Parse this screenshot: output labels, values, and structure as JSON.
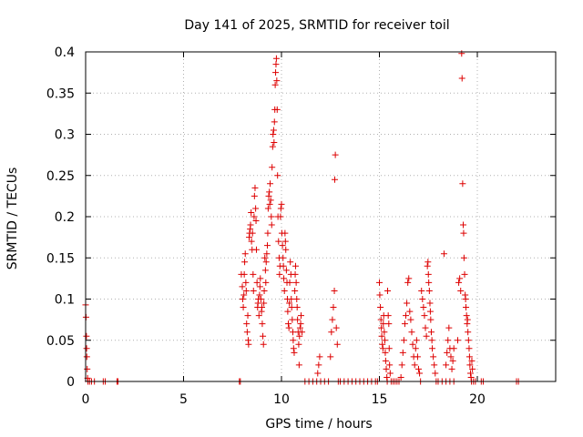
{
  "chart_data": {
    "type": "scatter",
    "title": "Day 141 of 2025, SRMTID for receiver toil",
    "xlabel": "GPS time / hours",
    "ylabel": "SRMTID / TECUs",
    "xlim": [
      0,
      24
    ],
    "ylim": [
      0,
      0.4
    ],
    "xticks": [
      0,
      5,
      10,
      15,
      20
    ],
    "xtick_labels": [
      "0",
      "5",
      "10",
      "15",
      "20"
    ],
    "yticks": [
      0,
      0.05,
      0.1,
      0.15,
      0.2,
      0.25,
      0.3,
      0.35,
      0.4
    ],
    "ytick_labels": [
      "0",
      "0.05",
      "0.1",
      "0.15",
      "0.2",
      "0.25",
      "0.3",
      "0.35",
      "0.4"
    ],
    "grid": true,
    "marker": "+",
    "marker_color": "#dd0000",
    "series": [
      {
        "name": "SRMTID",
        "points": [
          [
            0.0,
            0.093
          ],
          [
            0.02,
            0.078
          ],
          [
            0.04,
            0.055
          ],
          [
            0.05,
            0.04
          ],
          [
            0.06,
            0.03
          ],
          [
            0.08,
            0.015
          ],
          [
            0.1,
            0.004
          ],
          [
            0.12,
            0.0
          ],
          [
            0.2,
            0.0
          ],
          [
            0.3,
            0.0
          ],
          [
            0.45,
            0.0
          ],
          [
            0.9,
            0.0
          ],
          [
            1.0,
            0.0
          ],
          [
            1.6,
            0.0
          ],
          [
            1.65,
            0.0
          ],
          [
            7.85,
            0.0
          ],
          [
            7.9,
            0.0
          ],
          [
            7.95,
            0.13
          ],
          [
            8.0,
            0.115
          ],
          [
            8.02,
            0.1
          ],
          [
            8.05,
            0.09
          ],
          [
            8.08,
            0.105
          ],
          [
            8.1,
            0.13
          ],
          [
            8.12,
            0.145
          ],
          [
            8.15,
            0.155
          ],
          [
            8.18,
            0.12
          ],
          [
            8.2,
            0.11
          ],
          [
            8.22,
            0.07
          ],
          [
            8.25,
            0.06
          ],
          [
            8.28,
            0.08
          ],
          [
            8.3,
            0.05
          ],
          [
            8.32,
            0.045
          ],
          [
            8.35,
            0.175
          ],
          [
            8.37,
            0.18
          ],
          [
            8.4,
            0.185
          ],
          [
            8.42,
            0.19
          ],
          [
            8.45,
            0.205
          ],
          [
            8.47,
            0.17
          ],
          [
            8.5,
            0.16
          ],
          [
            8.52,
            0.18
          ],
          [
            8.55,
            0.13
          ],
          [
            8.57,
            0.11
          ],
          [
            8.6,
            0.2
          ],
          [
            8.62,
            0.225
          ],
          [
            8.65,
            0.235
          ],
          [
            8.68,
            0.21
          ],
          [
            8.7,
            0.195
          ],
          [
            8.72,
            0.16
          ],
          [
            8.75,
            0.12
          ],
          [
            8.78,
            0.09
          ],
          [
            8.8,
            0.095
          ],
          [
            8.82,
            0.1
          ],
          [
            8.85,
            0.08
          ],
          [
            8.88,
            0.105
          ],
          [
            8.9,
            0.115
          ],
          [
            8.92,
            0.125
          ],
          [
            8.95,
            0.1
          ],
          [
            8.98,
            0.085
          ],
          [
            9.0,
            0.09
          ],
          [
            9.02,
            0.07
          ],
          [
            9.05,
            0.055
          ],
          [
            9.08,
            0.045
          ],
          [
            9.1,
            0.095
          ],
          [
            9.12,
            0.11
          ],
          [
            9.15,
            0.15
          ],
          [
            9.18,
            0.135
          ],
          [
            9.2,
            0.12
          ],
          [
            9.22,
            0.145
          ],
          [
            9.25,
            0.155
          ],
          [
            9.28,
            0.165
          ],
          [
            9.3,
            0.18
          ],
          [
            9.32,
            0.21
          ],
          [
            9.35,
            0.225
          ],
          [
            9.38,
            0.23
          ],
          [
            9.4,
            0.215
          ],
          [
            9.42,
            0.24
          ],
          [
            9.45,
            0.22
          ],
          [
            9.48,
            0.2
          ],
          [
            9.5,
            0.19
          ],
          [
            9.52,
            0.26
          ],
          [
            9.55,
            0.285
          ],
          [
            9.57,
            0.3
          ],
          [
            9.6,
            0.305
          ],
          [
            9.62,
            0.29
          ],
          [
            9.64,
            0.315
          ],
          [
            9.66,
            0.33
          ],
          [
            9.68,
            0.36
          ],
          [
            9.7,
            0.375
          ],
          [
            9.72,
            0.385
          ],
          [
            9.74,
            0.392
          ],
          [
            9.76,
            0.365
          ],
          [
            9.78,
            0.33
          ],
          [
            9.8,
            0.25
          ],
          [
            9.82,
            0.2
          ],
          [
            9.85,
            0.17
          ],
          [
            9.88,
            0.15
          ],
          [
            9.9,
            0.13
          ],
          [
            9.92,
            0.14
          ],
          [
            9.95,
            0.2
          ],
          [
            9.97,
            0.21
          ],
          [
            10.0,
            0.215
          ],
          [
            10.02,
            0.18
          ],
          [
            10.05,
            0.165
          ],
          [
            10.08,
            0.15
          ],
          [
            10.1,
            0.14
          ],
          [
            10.12,
            0.125
          ],
          [
            10.15,
            0.11
          ],
          [
            10.18,
            0.18
          ],
          [
            10.2,
            0.17
          ],
          [
            10.22,
            0.16
          ],
          [
            10.25,
            0.135
          ],
          [
            10.28,
            0.12
          ],
          [
            10.3,
            0.1
          ],
          [
            10.32,
            0.085
          ],
          [
            10.35,
            0.07
          ],
          [
            10.38,
            0.065
          ],
          [
            10.4,
            0.095
          ],
          [
            10.42,
            0.12
          ],
          [
            10.45,
            0.145
          ],
          [
            10.48,
            0.13
          ],
          [
            10.5,
            0.1
          ],
          [
            10.52,
            0.09
          ],
          [
            10.55,
            0.075
          ],
          [
            10.58,
            0.06
          ],
          [
            10.6,
            0.05
          ],
          [
            10.62,
            0.04
          ],
          [
            10.65,
            0.035
          ],
          [
            10.68,
            0.11
          ],
          [
            10.7,
            0.13
          ],
          [
            10.72,
            0.14
          ],
          [
            10.75,
            0.12
          ],
          [
            10.78,
            0.1
          ],
          [
            10.8,
            0.09
          ],
          [
            10.82,
            0.075
          ],
          [
            10.85,
            0.06
          ],
          [
            10.88,
            0.045
          ],
          [
            10.9,
            0.02
          ],
          [
            10.92,
            0.055
          ],
          [
            10.95,
            0.065
          ],
          [
            10.98,
            0.07
          ],
          [
            11.0,
            0.08
          ],
          [
            11.05,
            0.06
          ],
          [
            11.2,
            0.0
          ],
          [
            11.4,
            0.0
          ],
          [
            11.6,
            0.0
          ],
          [
            11.8,
            0.0
          ],
          [
            11.85,
            0.01
          ],
          [
            11.9,
            0.02
          ],
          [
            11.95,
            0.03
          ],
          [
            12.0,
            0.0
          ],
          [
            12.2,
            0.0
          ],
          [
            12.4,
            0.0
          ],
          [
            12.5,
            0.03
          ],
          [
            12.55,
            0.06
          ],
          [
            12.6,
            0.075
          ],
          [
            12.65,
            0.09
          ],
          [
            12.7,
            0.11
          ],
          [
            12.72,
            0.245
          ],
          [
            12.75,
            0.275
          ],
          [
            12.8,
            0.065
          ],
          [
            12.85,
            0.045
          ],
          [
            12.9,
            0.0
          ],
          [
            13.0,
            0.0
          ],
          [
            13.2,
            0.0
          ],
          [
            13.4,
            0.0
          ],
          [
            13.6,
            0.0
          ],
          [
            13.8,
            0.0
          ],
          [
            14.0,
            0.0
          ],
          [
            14.2,
            0.0
          ],
          [
            14.4,
            0.0
          ],
          [
            14.6,
            0.0
          ],
          [
            14.8,
            0.0
          ],
          [
            14.9,
            0.0
          ],
          [
            15.0,
            0.12
          ],
          [
            15.02,
            0.105
          ],
          [
            15.05,
            0.09
          ],
          [
            15.08,
            0.075
          ],
          [
            15.1,
            0.065
          ],
          [
            15.12,
            0.055
          ],
          [
            15.15,
            0.045
          ],
          [
            15.18,
            0.04
          ],
          [
            15.2,
            0.07
          ],
          [
            15.22,
            0.08
          ],
          [
            15.25,
            0.06
          ],
          [
            15.28,
            0.05
          ],
          [
            15.3,
            0.035
          ],
          [
            15.32,
            0.025
          ],
          [
            15.35,
            0.015
          ],
          [
            15.38,
            0.005
          ],
          [
            15.4,
            0.0
          ],
          [
            15.42,
            0.11
          ],
          [
            15.45,
            0.08
          ],
          [
            15.48,
            0.07
          ],
          [
            15.5,
            0.04
          ],
          [
            15.52,
            0.02
          ],
          [
            15.55,
            0.01
          ],
          [
            15.6,
            0.0
          ],
          [
            15.7,
            0.0
          ],
          [
            15.8,
            0.0
          ],
          [
            15.9,
            0.0
          ],
          [
            16.0,
            0.0
          ],
          [
            16.1,
            0.005
          ],
          [
            16.15,
            0.02
          ],
          [
            16.2,
            0.035
          ],
          [
            16.25,
            0.05
          ],
          [
            16.3,
            0.07
          ],
          [
            16.35,
            0.08
          ],
          [
            16.4,
            0.095
          ],
          [
            16.45,
            0.12
          ],
          [
            16.5,
            0.125
          ],
          [
            16.55,
            0.085
          ],
          [
            16.6,
            0.075
          ],
          [
            16.65,
            0.06
          ],
          [
            16.7,
            0.045
          ],
          [
            16.75,
            0.03
          ],
          [
            16.8,
            0.02
          ],
          [
            16.85,
            0.04
          ],
          [
            16.9,
            0.05
          ],
          [
            16.95,
            0.03
          ],
          [
            17.0,
            0.015
          ],
          [
            17.05,
            0.01
          ],
          [
            17.1,
            0.0
          ],
          [
            17.15,
            0.11
          ],
          [
            17.2,
            0.1
          ],
          [
            17.25,
            0.09
          ],
          [
            17.3,
            0.08
          ],
          [
            17.35,
            0.065
          ],
          [
            17.4,
            0.055
          ],
          [
            17.45,
            0.14
          ],
          [
            17.48,
            0.145
          ],
          [
            17.5,
            0.13
          ],
          [
            17.52,
            0.12
          ],
          [
            17.55,
            0.11
          ],
          [
            17.58,
            0.095
          ],
          [
            17.6,
            0.085
          ],
          [
            17.62,
            0.075
          ],
          [
            17.65,
            0.06
          ],
          [
            17.68,
            0.05
          ],
          [
            17.7,
            0.04
          ],
          [
            17.75,
            0.03
          ],
          [
            17.8,
            0.02
          ],
          [
            17.85,
            0.01
          ],
          [
            17.9,
            0.0
          ],
          [
            18.0,
            0.0
          ],
          [
            18.2,
            0.0
          ],
          [
            18.4,
            0.0
          ],
          [
            18.6,
            0.0
          ],
          [
            18.8,
            0.0
          ],
          [
            18.3,
            0.155
          ],
          [
            18.4,
            0.02
          ],
          [
            18.45,
            0.035
          ],
          [
            18.5,
            0.05
          ],
          [
            18.55,
            0.065
          ],
          [
            18.6,
            0.04
          ],
          [
            18.65,
            0.03
          ],
          [
            18.7,
            0.015
          ],
          [
            18.75,
            0.025
          ],
          [
            18.8,
            0.04
          ],
          [
            19.0,
            0.05
          ],
          [
            19.05,
            0.12
          ],
          [
            19.1,
            0.125
          ],
          [
            19.15,
            0.11
          ],
          [
            19.2,
            0.398
          ],
          [
            19.22,
            0.368
          ],
          [
            19.25,
            0.24
          ],
          [
            19.28,
            0.19
          ],
          [
            19.3,
            0.18
          ],
          [
            19.32,
            0.15
          ],
          [
            19.35,
            0.13
          ],
          [
            19.38,
            0.105
          ],
          [
            19.4,
            0.1
          ],
          [
            19.42,
            0.09
          ],
          [
            19.45,
            0.08
          ],
          [
            19.48,
            0.07
          ],
          [
            19.5,
            0.075
          ],
          [
            19.52,
            0.06
          ],
          [
            19.55,
            0.05
          ],
          [
            19.58,
            0.04
          ],
          [
            19.6,
            0.03
          ],
          [
            19.62,
            0.02
          ],
          [
            19.65,
            0.01
          ],
          [
            19.68,
            0.005
          ],
          [
            19.7,
            0.0
          ],
          [
            19.72,
            0.025
          ],
          [
            19.75,
            0.015
          ],
          [
            19.8,
            0.0
          ],
          [
            19.9,
            0.0
          ],
          [
            20.2,
            0.0
          ],
          [
            20.3,
            0.0
          ],
          [
            22.0,
            0.0
          ],
          [
            22.1,
            0.0
          ]
        ]
      }
    ]
  }
}
